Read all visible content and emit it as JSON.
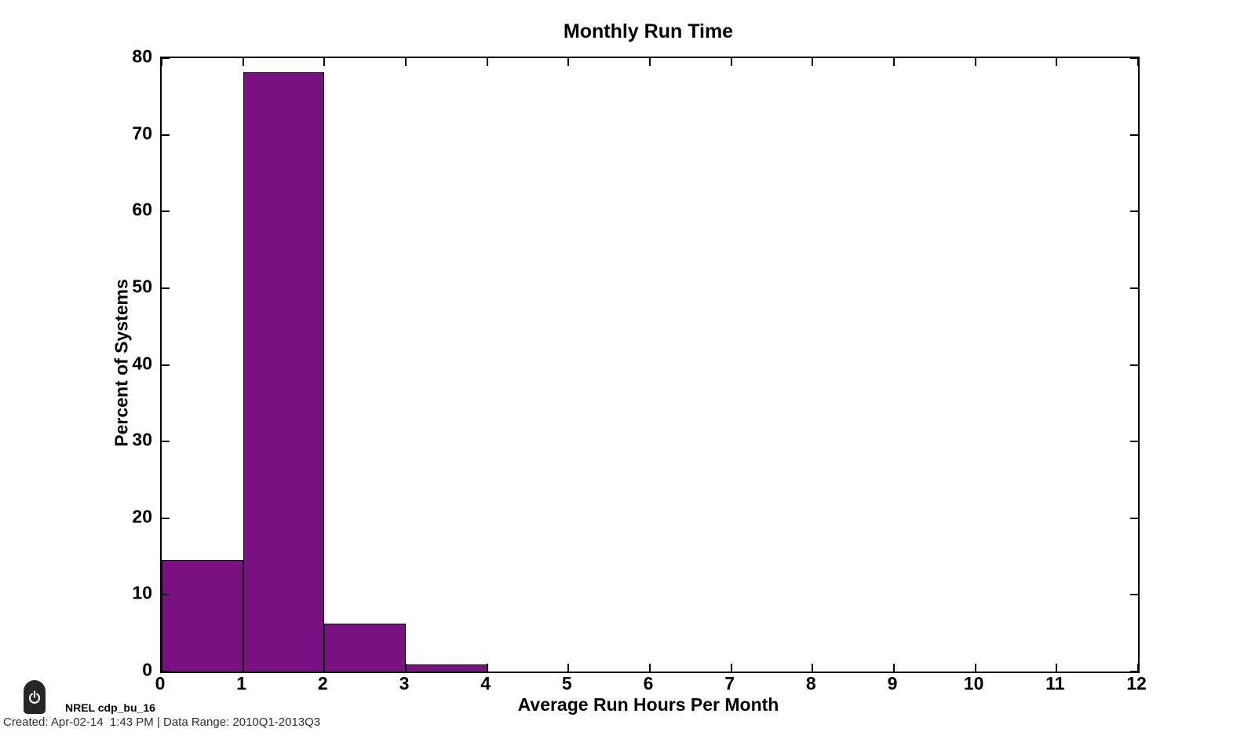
{
  "chart_data": {
    "type": "bar",
    "subtype": "histogram",
    "title": "Monthly Run Time",
    "xlabel": "Average Run Hours Per Month",
    "ylabel": "Percent of Systems",
    "xlim": [
      0,
      12
    ],
    "ylim": [
      0,
      80
    ],
    "xticks": [
      0,
      1,
      2,
      3,
      4,
      5,
      6,
      7,
      8,
      9,
      10,
      11,
      12
    ],
    "yticks": [
      0,
      10,
      20,
      30,
      40,
      50,
      60,
      70,
      80
    ],
    "grid": false,
    "legend_position": "none",
    "bar_color": "#7a1182",
    "bar_edge_color": "#000000",
    "bins": [
      {
        "x0": 0,
        "x1": 1,
        "value": 14.5
      },
      {
        "x0": 1,
        "x1": 2,
        "value": 78.2
      },
      {
        "x0": 2,
        "x1": 3,
        "value": 6.3
      },
      {
        "x0": 3,
        "x1": 4,
        "value": 0.9
      }
    ]
  },
  "footer": {
    "power_icon": "power-icon",
    "watermark": "NREL cdp_bu_16",
    "created": "Created: Apr-02-14  1:43 PM | Data Range: 2010Q1-2013Q3"
  }
}
